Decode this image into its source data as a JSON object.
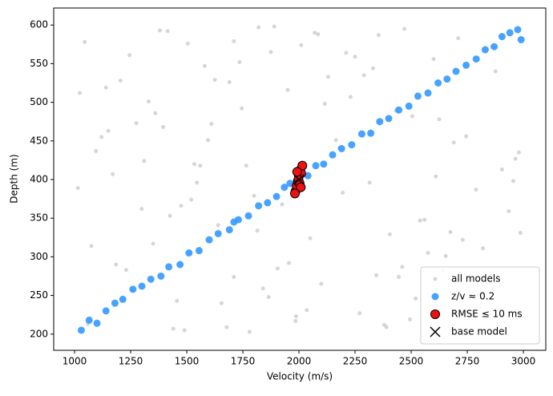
{
  "chart_data": {
    "type": "scatter",
    "xlabel": "Velocity (m/s)",
    "ylabel": "Depth (m)",
    "xlim": [
      907,
      3100
    ],
    "xticks": [
      1000,
      1250,
      1500,
      1750,
      2000,
      2250,
      2500,
      2750,
      3000
    ],
    "ylim": [
      179,
      622
    ],
    "yticks": [
      200,
      250,
      300,
      350,
      400,
      450,
      500,
      550,
      600
    ],
    "legend": "lower right",
    "series": [
      {
        "name": "all models",
        "color": "#999999",
        "marker": "o",
        "alpha": 0.4,
        "x": [
          1023,
          1456,
          2789,
          1890,
          2345,
          1120,
          2987,
          1678,
          2210,
          1534,
          2654,
          1045,
          1987,
          2432,
          1299,
          2876,
          1765,
          2099,
          1380,
          2540,
          1610,
          2921,
          1205,
          2315,
          1840,
          2710,
          1075,
          2180,
          1490,
          2600,
          1925,
          2460,
          1330,
          2805,
          1710,
          2050,
          1150,
          2380,
          1580,
          2955,
          1260,
          2130,
          1800,
          2690,
          1415,
          2270,
          1950,
          2575,
          1095,
          2840,
          1640,
          2010,
          1360,
          2495,
          1735,
          2905,
          1185,
          2230,
          1520,
          2760,
          1875,
          2405,
          1275,
          2640,
          1560,
          2070,
          1440,
          2935,
          1690,
          2165,
          1015,
          2520,
          1820,
          2730,
          1395,
          2290,
          1985,
          2610,
          1230,
          2865,
          1655,
          2115,
          1475,
          2355,
          1780,
          2980,
          1140,
          2445,
          1595,
          2675,
          1905,
          2250,
          1310,
          2820,
          1745,
          2035,
          1505,
          2560,
          1170,
          2895,
          1625,
          2195,
          1865,
          2470,
          1350,
          2745,
          1060,
          2330,
          1955,
          2625,
          1425,
          2085,
          1710,
          2965,
          1245,
          2390,
          1815,
          2505,
          1545,
          2800
        ],
        "values": [
          512,
          243,
          387,
          598,
          276,
          455,
          331,
          209,
          564,
          420,
          301,
          578,
          223,
          489,
          362,
          540,
          418,
          265,
          593,
          347,
          472,
          215,
          528,
          396,
          259,
          583,
          314,
          441,
          205,
          556,
          368,
          287,
          501,
          236,
          579,
          324,
          463,
          212,
          547,
          398,
          256,
          533,
          379,
          448,
          592,
          227,
          516,
          305,
          437,
          268,
          341,
          574,
          486,
          219,
          552,
          413,
          290,
          507,
          374,
          235,
          565,
          329,
          473,
          282,
          418,
          590,
          207,
          359,
          526,
          451,
          389,
          246,
          597,
          322,
          468,
          535,
          217,
          404,
          283,
          571,
          240,
          498,
          366,
          587,
          203,
          435,
          519,
          274,
          451,
          332,
          285,
          559,
          424,
          311,
          492,
          231,
          576,
          348,
          407,
          262,
          529,
          383,
          248,
          595,
          317,
          456,
          213,
          544,
          292,
          478,
          353,
          588,
          274,
          427,
          561,
          209,
          334,
          482,
          396,
          251
        ]
      },
      {
        "name": "z/v ≈ 0.2",
        "color": "#3399ff",
        "marker": "o",
        "alpha": 0.9,
        "x": [
          1030,
          1065,
          1100,
          1140,
          1180,
          1215,
          1260,
          1300,
          1340,
          1385,
          1420,
          1470,
          1510,
          1555,
          1600,
          1640,
          1690,
          1730,
          1775,
          1820,
          1860,
          1900,
          1935,
          1960,
          2040,
          2075,
          2110,
          2150,
          2190,
          2235,
          2280,
          2320,
          2360,
          2400,
          2445,
          2490,
          2530,
          2575,
          2620,
          2660,
          2700,
          2745,
          2790,
          2830,
          2870,
          2905,
          2940,
          2975,
          2990,
          1710
        ],
        "values": [
          205,
          218,
          214,
          230,
          240,
          245,
          258,
          262,
          271,
          275,
          287,
          290,
          305,
          308,
          322,
          330,
          335,
          348,
          353,
          366,
          370,
          378,
          390,
          395,
          405,
          418,
          420,
          432,
          440,
          445,
          459,
          460,
          475,
          479,
          490,
          495,
          508,
          512,
          525,
          530,
          540,
          548,
          556,
          568,
          572,
          585,
          590,
          594,
          581,
          345
        ]
      },
      {
        "name": "RMSE ≤ 10 ms",
        "color": "#ee1111",
        "marker": "o",
        "alpha": 1,
        "edgecolor": "#000000",
        "x": [
          1985,
          1990,
          1995,
          2000,
          2005,
          2010,
          2015,
          1982,
          1998,
          2003,
          1992,
          2008
        ],
        "values": [
          385,
          392,
          398,
          405,
          412,
          408,
          418,
          382,
          400,
          395,
          410,
          390
        ]
      },
      {
        "name": "base model",
        "color": "#000000",
        "marker": "x",
        "alpha": 1,
        "x": [
          2000
        ],
        "values": [
          400
        ]
      }
    ]
  }
}
